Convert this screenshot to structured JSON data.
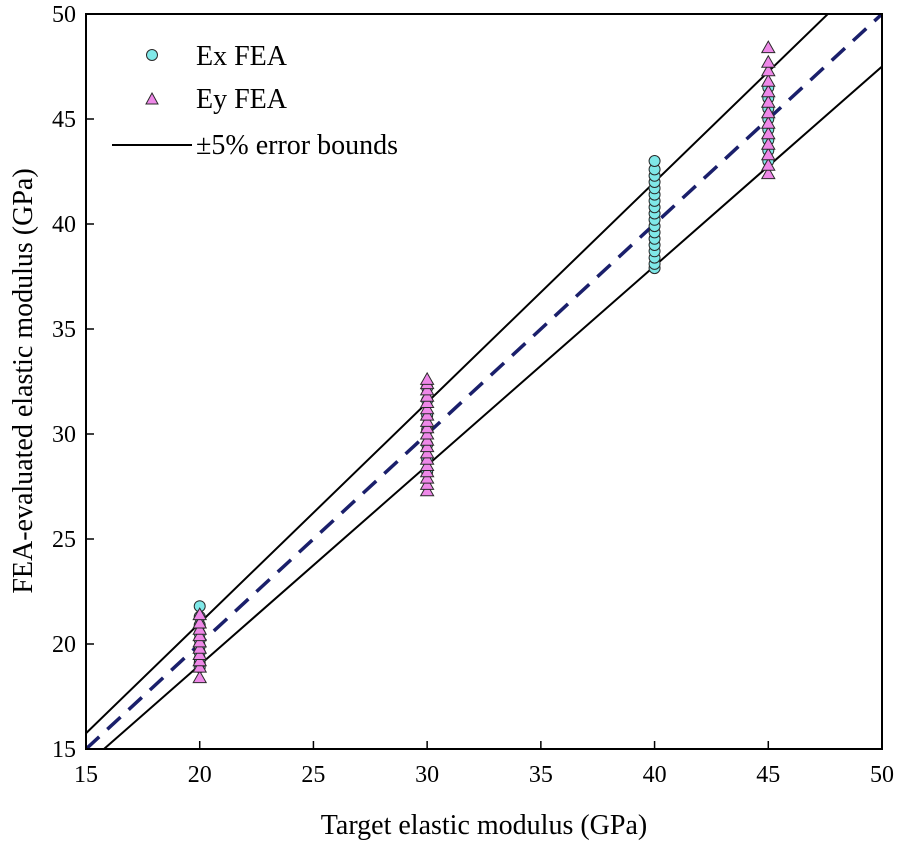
{
  "chart_data": {
    "type": "scatter",
    "xlabel": "Target elastic modulus (GPa)",
    "ylabel": "FEA-evaluated elastic modulus (GPa)",
    "xlim": [
      15,
      50
    ],
    "ylim": [
      15,
      50
    ],
    "x_ticks": [
      15,
      20,
      25,
      30,
      35,
      40,
      45,
      50
    ],
    "y_ticks": [
      15,
      20,
      25,
      30,
      35,
      40,
      45,
      50
    ],
    "grid": false,
    "legend_position": "top-left",
    "legend": [
      {
        "label": "Ex FEA",
        "marker": "circle"
      },
      {
        "label": "Ey FEA",
        "marker": "triangle"
      },
      {
        "label": "±5% error bounds",
        "marker": "line"
      }
    ],
    "series": [
      {
        "name": "Ex FEA",
        "marker": "circle",
        "color": "#7fe8e8",
        "points": [
          {
            "x": 20,
            "y": 18.9
          },
          {
            "x": 20,
            "y": 19.1
          },
          {
            "x": 20,
            "y": 19.3
          },
          {
            "x": 20,
            "y": 19.6
          },
          {
            "x": 20,
            "y": 19.9
          },
          {
            "x": 20,
            "y": 20.2
          },
          {
            "x": 20,
            "y": 20.5
          },
          {
            "x": 20,
            "y": 20.9
          },
          {
            "x": 20,
            "y": 21.3
          },
          {
            "x": 20,
            "y": 21.8
          },
          {
            "x": 30,
            "y": 28.2
          },
          {
            "x": 30,
            "y": 28.8
          },
          {
            "x": 30,
            "y": 29.5
          },
          {
            "x": 30,
            "y": 30.2
          },
          {
            "x": 30,
            "y": 30.9
          },
          {
            "x": 30,
            "y": 31.6
          },
          {
            "x": 30,
            "y": 32.2
          },
          {
            "x": 40,
            "y": 37.9
          },
          {
            "x": 40,
            "y": 38.1
          },
          {
            "x": 40,
            "y": 38.4
          },
          {
            "x": 40,
            "y": 38.7
          },
          {
            "x": 40,
            "y": 39.0
          },
          {
            "x": 40,
            "y": 39.3
          },
          {
            "x": 40,
            "y": 39.6
          },
          {
            "x": 40,
            "y": 39.9
          },
          {
            "x": 40,
            "y": 40.2
          },
          {
            "x": 40,
            "y": 40.5
          },
          {
            "x": 40,
            "y": 40.8
          },
          {
            "x": 40,
            "y": 41.1
          },
          {
            "x": 40,
            "y": 41.4
          },
          {
            "x": 40,
            "y": 41.7
          },
          {
            "x": 40,
            "y": 42.0
          },
          {
            "x": 40,
            "y": 42.3
          },
          {
            "x": 40,
            "y": 42.6
          },
          {
            "x": 40,
            "y": 43.0
          },
          {
            "x": 45,
            "y": 43.0
          },
          {
            "x": 45,
            "y": 43.5
          },
          {
            "x": 45,
            "y": 44.0
          },
          {
            "x": 45,
            "y": 44.5
          },
          {
            "x": 45,
            "y": 45.0
          },
          {
            "x": 45,
            "y": 45.5
          },
          {
            "x": 45,
            "y": 46.0
          },
          {
            "x": 45,
            "y": 46.5
          }
        ]
      },
      {
        "name": "Ey FEA",
        "marker": "triangle",
        "color": "#ee88e8",
        "points": [
          {
            "x": 20,
            "y": 18.4
          },
          {
            "x": 20,
            "y": 18.9
          },
          {
            "x": 20,
            "y": 19.2
          },
          {
            "x": 20,
            "y": 19.5
          },
          {
            "x": 20,
            "y": 19.8
          },
          {
            "x": 20,
            "y": 20.1
          },
          {
            "x": 20,
            "y": 20.4
          },
          {
            "x": 20,
            "y": 20.7
          },
          {
            "x": 20,
            "y": 21.0
          },
          {
            "x": 20,
            "y": 21.4
          },
          {
            "x": 30,
            "y": 27.3
          },
          {
            "x": 30,
            "y": 27.6
          },
          {
            "x": 30,
            "y": 27.9
          },
          {
            "x": 30,
            "y": 28.2
          },
          {
            "x": 30,
            "y": 28.5
          },
          {
            "x": 30,
            "y": 28.8
          },
          {
            "x": 30,
            "y": 29.1
          },
          {
            "x": 30,
            "y": 29.4
          },
          {
            "x": 30,
            "y": 29.7
          },
          {
            "x": 30,
            "y": 30.0
          },
          {
            "x": 30,
            "y": 30.3
          },
          {
            "x": 30,
            "y": 30.6
          },
          {
            "x": 30,
            "y": 30.9
          },
          {
            "x": 30,
            "y": 31.2
          },
          {
            "x": 30,
            "y": 31.5
          },
          {
            "x": 30,
            "y": 31.8
          },
          {
            "x": 30,
            "y": 32.1
          },
          {
            "x": 30,
            "y": 32.4
          },
          {
            "x": 30,
            "y": 32.6
          },
          {
            "x": 45,
            "y": 42.4
          },
          {
            "x": 45,
            "y": 42.8
          },
          {
            "x": 45,
            "y": 43.3
          },
          {
            "x": 45,
            "y": 43.8
          },
          {
            "x": 45,
            "y": 44.3
          },
          {
            "x": 45,
            "y": 44.8
          },
          {
            "x": 45,
            "y": 45.3
          },
          {
            "x": 45,
            "y": 45.8
          },
          {
            "x": 45,
            "y": 46.3
          },
          {
            "x": 45,
            "y": 46.8
          },
          {
            "x": 45,
            "y": 47.3
          },
          {
            "x": 45,
            "y": 47.7
          },
          {
            "x": 45,
            "y": 48.4
          }
        ]
      }
    ],
    "reference_lines": [
      {
        "name": "y = x",
        "slope": 1.0,
        "style": "dashed",
        "color": "#1a1f6b"
      },
      {
        "name": "+5%",
        "slope": 1.05,
        "style": "solid",
        "color": "#000000"
      },
      {
        "name": "-5%",
        "slope": 0.95,
        "style": "solid",
        "color": "#000000"
      }
    ]
  }
}
